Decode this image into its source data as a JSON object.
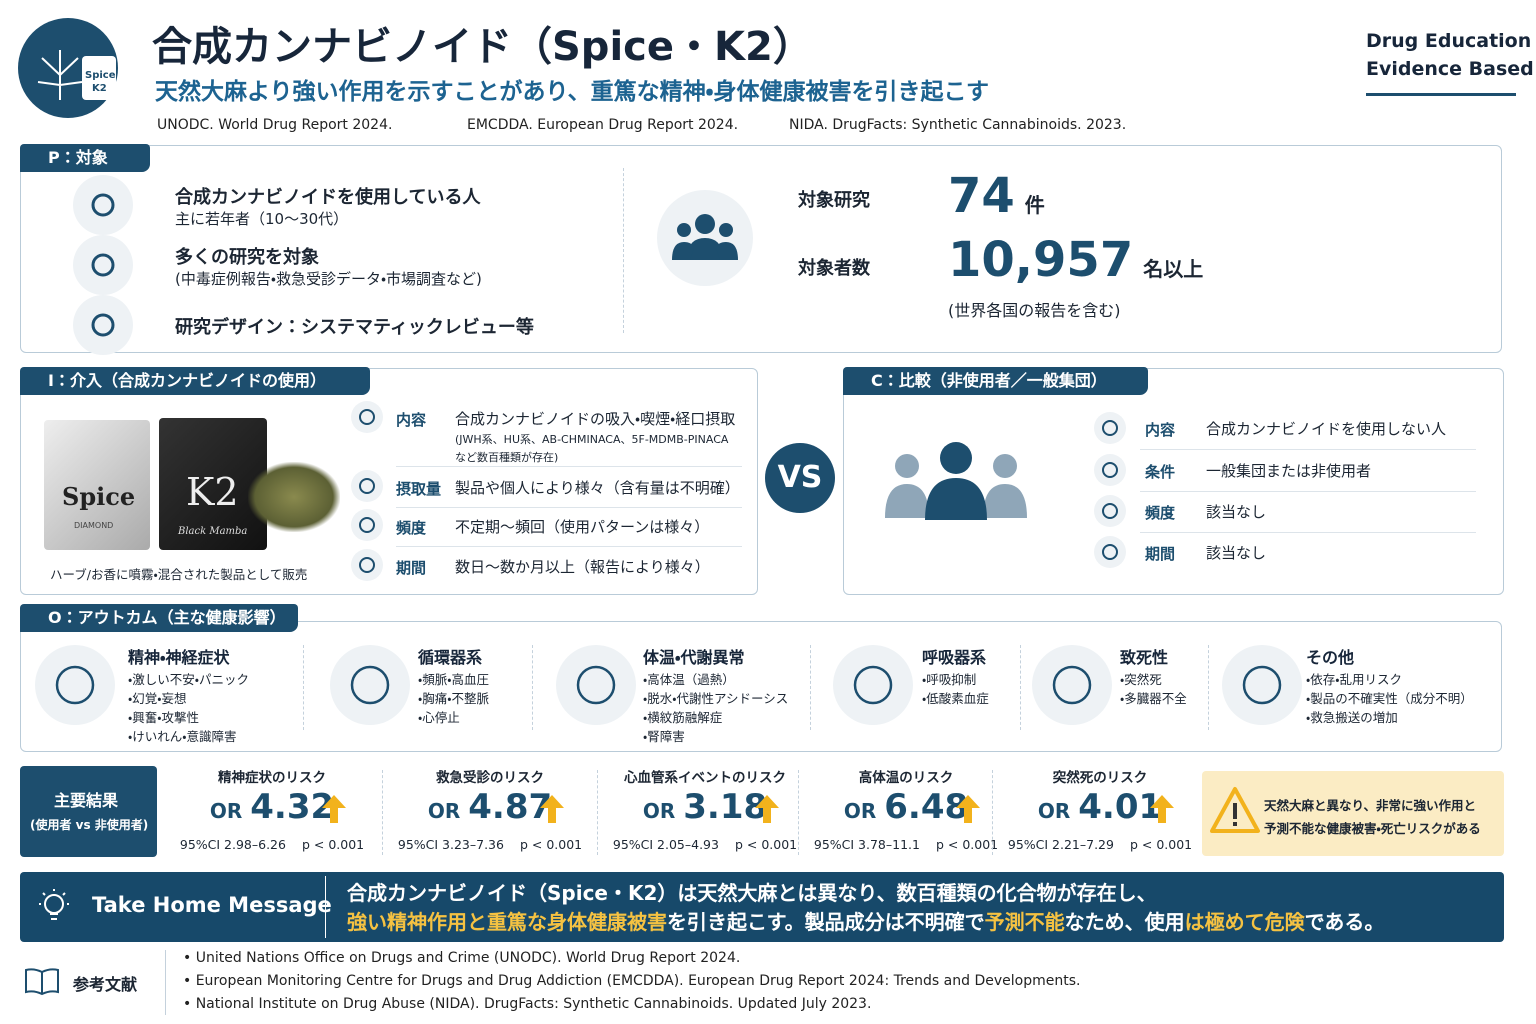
{
  "header": {
    "title": "合成カンナビノイド（Spice・K2）",
    "subtitle": "天然大麻より強い作用を示すことがあり、重篤な精神・身体健康被害を引き起こす",
    "sources": [
      "UNODC.  World Drug Report 2024.",
      "EMCDDA. European Drug Report 2024.",
      "NIDA. DrugFacts: Synthetic Cannabinoids. 2023."
    ],
    "brand": [
      "Drug Education",
      "Evidence Based"
    ],
    "logo_label": [
      "Spice",
      "K2"
    ]
  },
  "p": {
    "tag": "P：対象",
    "items": [
      {
        "title": "合成カンナビノイドを使用している人",
        "sub": "主に若年者（10〜30代）"
      },
      {
        "title": "多くの研究を対象",
        "sub": "(中毒症例報告・救急受診データ・市場調査など)"
      },
      {
        "title": "研究デザイン：システマティックレビュー等"
      }
    ],
    "stats": [
      {
        "label": "対象研究",
        "value": "74",
        "unit": "件"
      },
      {
        "label": "対象者数",
        "value": "10,957",
        "unit": "名以上"
      }
    ],
    "note": "(世界各国の報告を含む)"
  },
  "i": {
    "tag": "I：介入（合成カンナビノイドの使用）",
    "product_labels": [
      "Spice",
      "DIAMOND",
      "K2",
      "Black Mamba"
    ],
    "caption": "ハーブ/お香に噴霧・混合された製品として販売",
    "rows": [
      {
        "label": "内容",
        "text": "合成カンナビノイドの吸入・喫煙・経口摂取",
        "note": [
          "(JWH系、HU系、AB-CHMINACA、5F-MDMB-PINACA",
          "など数百種類が存在)"
        ]
      },
      {
        "label": "摂取量",
        "text": "製品や個人により様々（含有量は不明確）"
      },
      {
        "label": "頻度",
        "text": "不定期〜頻回（使用パターンは様々）"
      },
      {
        "label": "期間",
        "text": "数日〜数か月以上（報告により様々）"
      }
    ]
  },
  "vs": "VS",
  "c": {
    "tag": "C：比較（非使用者／一般集団）",
    "rows": [
      {
        "label": "内容",
        "text": "合成カンナビノイドを使用しない人"
      },
      {
        "label": "条件",
        "text": "一般集団または非使用者"
      },
      {
        "label": "頻度",
        "text": "該当なし"
      },
      {
        "label": "期間",
        "text": "該当なし"
      }
    ]
  },
  "o": {
    "tag": "O：アウトカム（主な健康影響）",
    "groups": [
      {
        "title": "精神・神経症状",
        "items": [
          "・激しい不安・パニック",
          "・幻覚・妄想",
          "・興奮・攻撃性",
          "・けいれん・意識障害"
        ]
      },
      {
        "title": "循環器系",
        "items": [
          "・頻脈・高血圧",
          "・胸痛・不整脈",
          "・心停止"
        ]
      },
      {
        "title": "体温・代謝異常",
        "items": [
          "・高体温（過熱）",
          "・脱水・代謝性アシドーシス",
          "・横紋筋融解症",
          "・腎障害"
        ]
      },
      {
        "title": "呼吸器系",
        "items": [
          "・呼吸抑制",
          "・低酸素血症"
        ]
      },
      {
        "title": "致死性",
        "items": [
          "・突然死",
          "・多臓器不全"
        ]
      },
      {
        "title": "その他",
        "items": [
          "・依存・乱用リスク",
          "・製品の不確実性（成分不明）",
          "・救急搬送の増加"
        ]
      }
    ]
  },
  "results": {
    "label": [
      "主要結果",
      "(使用者 vs 非使用者)"
    ],
    "items": [
      {
        "title": "精神症状のリスク",
        "prefix": "OR",
        "value": "4.32",
        "ci": "95%CI 2.98–6.26",
        "p": "p < 0.001"
      },
      {
        "title": "救急受診のリスク",
        "prefix": "OR",
        "value": "4.87",
        "ci": "95%CI 3.23–7.36",
        "p": "p < 0.001"
      },
      {
        "title": "心血管系イベントのリスク",
        "prefix": "OR",
        "value": "3.18",
        "ci": "95%CI 2.05–4.93",
        "p": "p < 0.001"
      },
      {
        "title": "高体温のリスク",
        "prefix": "OR",
        "value": "6.48",
        "ci": "95%CI 3.78–11.1",
        "p": "p < 0.001"
      },
      {
        "title": "突然死のリスク",
        "prefix": "OR",
        "value": "4.01",
        "ci": "95%CI 2.21–7.29",
        "p": "p < 0.001"
      }
    ],
    "warning": [
      "天然大麻と異なり、非常に強い作用と",
      "予測不能な健康被害・死亡リスクがある"
    ]
  },
  "message": {
    "label": "Take Home Message",
    "line1": "合成カンナビノイド（Spice・K2）は天然大麻とは異なり、数百種類の化合物が存在し、",
    "line2": [
      {
        "text": "強い精神作用と重篤な身体健康被害",
        "highlight": true
      },
      {
        "text": "を引き起こす。製品成分は不明確で",
        "highlight": false
      },
      {
        "text": "予測不能",
        "highlight": true
      },
      {
        "text": "なため、使用",
        "highlight": false
      },
      {
        "text": "は極めて危険",
        "highlight": true
      },
      {
        "text": "である。",
        "highlight": false
      }
    ]
  },
  "references": {
    "label": "参考文献",
    "items": [
      "• United Nations Office on Drugs and Crime (UNODC). World Drug Report 2024.",
      "• European Monitoring Centre for Drugs and Drug Addiction (EMCDDA). European Drug Report 2024: Trends and Developments.",
      "• National Institute on Drug Abuse (NIDA). DrugFacts: Synthetic Cannabinoids. Updated July 2023."
    ]
  }
}
